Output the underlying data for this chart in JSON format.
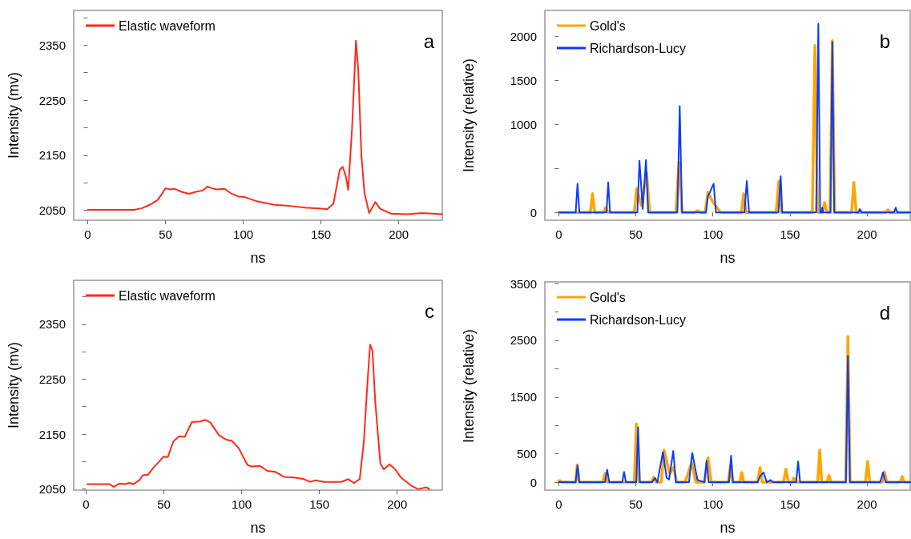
{
  "chart_data": [
    {
      "type": "line",
      "xlabel": "ns",
      "ylabel": "Intensity (mv)",
      "annotations": [
        "a"
      ],
      "legend": "top left",
      "xlim": [
        -9,
        228
      ],
      "xticks": [
        0,
        50,
        100,
        150,
        200
      ],
      "ylim": [
        2032,
        2413
      ],
      "yticks": [
        2050,
        {
          "value": 2100,
          "label": null
        },
        2150,
        {
          "value": 2200,
          "label": null
        },
        2250,
        {
          "value": 2300,
          "label": null
        },
        2350,
        {
          "value": 2400,
          "label": null
        }
      ],
      "series": [
        {
          "name": "Elastic waveform",
          "color": "#ff2a1a",
          "x": [
            0,
            30,
            35,
            40,
            45,
            48,
            50,
            53,
            56,
            60,
            65,
            70,
            74,
            77,
            80,
            83,
            88,
            92,
            97,
            101,
            108,
            120,
            130,
            140,
            150,
            154,
            158,
            162,
            164,
            166,
            167.5,
            170,
            172.5,
            174,
            176,
            178,
            181,
            185,
            188,
            195,
            205,
            215,
            228
          ],
          "values": [
            2051,
            2051,
            2054,
            2060,
            2069,
            2081,
            2090,
            2088,
            2089,
            2084,
            2080,
            2084,
            2086,
            2093,
            2090,
            2088,
            2089,
            2081,
            2075,
            2074,
            2067,
            2060,
            2058,
            2055,
            2053,
            2052,
            2062,
            2123,
            2129,
            2112,
            2087,
            2200,
            2358,
            2303,
            2149,
            2081,
            2045,
            2065,
            2053,
            2044,
            2043,
            2045,
            2043
          ]
        }
      ]
    },
    {
      "type": "line",
      "xlabel": "ns",
      "ylabel": "Intensity (relative)",
      "annotations": [
        "b"
      ],
      "legend": "top left",
      "xlim": [
        -9,
        228
      ],
      "xticks": [
        0,
        50,
        100,
        150,
        200
      ],
      "ylim": [
        -89,
        2293
      ],
      "yticks": [
        0,
        {
          "value": 500,
          "label": null
        },
        1000,
        1500,
        2000
      ],
      "series": [
        {
          "name": "Gold's",
          "color": "#ffa500",
          "x": [
            0,
            20.5,
            21.9,
            23.3,
            29,
            30.5,
            32,
            49,
            50.6,
            53.5,
            57,
            59,
            76,
            78,
            80,
            88,
            90,
            92,
            95,
            96.8,
            100,
            105,
            118.5,
            120,
            121.5,
            141,
            142.8,
            144.5,
            164.5,
            166.2,
            168,
            171,
            172.4,
            174,
            176,
            177.5,
            179,
            190,
            191.4,
            193,
            212,
            213.5,
            215,
            228
          ],
          "values": [
            0,
            0,
            213,
            0,
            0,
            54,
            0,
            0,
            270,
            80,
            452,
            0,
            0,
            570,
            0,
            0,
            20,
            0,
            0,
            229,
            118,
            0,
            0,
            213,
            0,
            0,
            357,
            0,
            0,
            1895,
            0,
            0,
            111,
            0,
            0,
            1949,
            0,
            0,
            340,
            0,
            0,
            29,
            0,
            0
          ]
        },
        {
          "name": "Richardson-Lucy",
          "color": "#0a3cff",
          "x": [
            0,
            11,
            12.2,
            13.4,
            31,
            32.1,
            33.3,
            51,
            52.4,
            54.5,
            56.6,
            58,
            77,
            78.5,
            80,
            95.5,
            96.8,
            100.5,
            102,
            120.5,
            122,
            123.5,
            142.5,
            144,
            145,
            167,
            168.4,
            169.6,
            170.5,
            171,
            171.5,
            176.3,
            177.5,
            178.7,
            194.3,
            195.4,
            196.5,
            217.5,
            218.6,
            219.7,
            228
          ],
          "values": [
            0,
            0,
            325,
            0,
            0,
            340,
            0,
            0,
            586,
            38,
            596,
            0,
            0,
            1207,
            0,
            0,
            180,
            325,
            0,
            0,
            357,
            0,
            0,
            411,
            0,
            0,
            2140,
            0,
            0,
            54,
            0,
            0,
            1933,
            0,
            0,
            38,
            0,
            0,
            54,
            0,
            0
          ]
        }
      ]
    },
    {
      "type": "line",
      "xlabel": "ns",
      "ylabel": "Intensity (mv)",
      "annotations": [
        "c"
      ],
      "legend": "top left",
      "xlim": [
        -8,
        229
      ],
      "xticks": [
        0,
        50,
        100,
        150,
        200
      ],
      "ylim": [
        2048,
        2430
      ],
      "yticks": [
        2050,
        {
          "value": 2100,
          "label": null
        },
        2150,
        {
          "value": 2200,
          "label": null
        },
        2250,
        {
          "value": 2300,
          "label": null
        },
        2350,
        {
          "value": 2400,
          "label": null
        }
      ],
      "series": [
        {
          "name": "Elastic waveform",
          "color": "#ff2a1a",
          "x": [
            0.7,
            12.2,
            15,
            17.7,
            21.4,
            25,
            27.8,
            30.5,
            34.2,
            36.4,
            39.7,
            43.3,
            47,
            49.7,
            52.5,
            56.1,
            59.8,
            63.4,
            68,
            73.5,
            76.6,
            79.9,
            85.4,
            89.9,
            93.6,
            98.2,
            103.7,
            106.4,
            111.9,
            116.5,
            121.9,
            127.4,
            133.8,
            140.2,
            143.9,
            147.5,
            153,
            158.5,
            164,
            168.6,
            172.2,
            175.9,
            178.6,
            180.8,
            182.6,
            184.1,
            185.9,
            189.2,
            191.4,
            195.1,
            198.7,
            202.4,
            204.2,
            209.7,
            213.3,
            218.8,
            220.7
          ],
          "values": [
            2059,
            2059,
            2059,
            2054,
            2060,
            2059,
            2061,
            2059,
            2066,
            2075,
            2076,
            2089,
            2100,
            2109,
            2108,
            2137,
            2146,
            2145,
            2172,
            2173,
            2176,
            2171,
            2148,
            2140,
            2138,
            2124,
            2094,
            2091,
            2092,
            2083,
            2081,
            2072,
            2071,
            2068,
            2063,
            2066,
            2063,
            2063,
            2063,
            2068,
            2061,
            2068,
            2137,
            2240,
            2313,
            2302,
            2209,
            2096,
            2086,
            2095,
            2086,
            2071,
            2067,
            2055,
            2050,
            2053,
            2050
          ]
        }
      ]
    },
    {
      "type": "line",
      "xlabel": "ns",
      "ylabel": "Intensity (relative)",
      "annotations": [
        "d"
      ],
      "legend": "top left",
      "xlim": [
        -9,
        228
      ],
      "xticks": [
        0,
        50,
        100,
        150,
        200
      ],
      "ylim": [
        -140,
        3530
      ],
      "yticks": [
        0,
        500,
        {
          "value": 1000,
          "label": null
        },
        1500,
        {
          "value": 2000,
          "label": null
        },
        2500,
        {
          "value": 3000,
          "label": null
        },
        3500
      ],
      "series": [
        {
          "name": "Gold's",
          "color": "#ffa500",
          "x": [
            0,
            1,
            2,
            11,
            12,
            13.3,
            28.5,
            30.1,
            31.5,
            49,
            50.4,
            52,
            60,
            61.6,
            63,
            66.5,
            68.3,
            72,
            74.5,
            76.5,
            82,
            86.2,
            89,
            94.5,
            96.8,
            99,
            110,
            111.4,
            112.8,
            117.5,
            118.7,
            120,
            129,
            130.6,
            132,
            145.8,
            147.4,
            149,
            151.5,
            152.5,
            153.5,
            168,
            169.3,
            170.6,
            174,
            175.3,
            176.6,
            186.2,
            187.6,
            189,
            199,
            200.4,
            201.8,
            209.8,
            211.3,
            212.8,
            221.5,
            222.8,
            224.1,
            228
          ],
          "values": [
            25,
            25,
            0,
            0,
            305,
            0,
            0,
            157,
            0,
            0,
            1027,
            0,
            0,
            84,
            0,
            0,
            565,
            150,
            260,
            0,
            0,
            344,
            0,
            0,
            432,
            0,
            0,
            295,
            0,
            0,
            172,
            0,
            0,
            260,
            0,
            0,
            231,
            0,
            0,
            74,
            0,
            0,
            565,
            0,
            0,
            123,
            0,
            0,
            2570,
            0,
            0,
            369,
            0,
            0,
            182,
            0,
            0,
            98,
            0,
            0
          ]
        },
        {
          "name": "Richardson-Lucy",
          "color": "#0a3cff",
          "x": [
            0,
            11,
            12.2,
            13.4,
            30,
            31.4,
            32.8,
            41.2,
            42.4,
            43.6,
            50.3,
            51.5,
            52.7,
            60.5,
            62.5,
            64,
            67.6,
            70,
            71.6,
            74.3,
            76,
            84.5,
            86.6,
            90,
            94.5,
            95.9,
            97.3,
            110.5,
            111.8,
            113.1,
            129,
            130.5,
            132.8,
            135,
            137.4,
            139,
            154,
            155.3,
            156.6,
            186.3,
            187.6,
            188.9,
            208.5,
            210.4,
            212,
            228
          ],
          "values": [
            0,
            0,
            295,
            0,
            0,
            221,
            0,
            0,
            182,
            0,
            0,
            968,
            0,
            0,
            74,
            0,
            531,
            80,
            49,
            550,
            0,
            0,
            516,
            40,
            0,
            378,
            0,
            0,
            467,
            0,
            0,
            98,
            172,
            0,
            39,
            0,
            0,
            364,
            0,
            0,
            2226,
            0,
            0,
            172,
            0,
            0
          ]
        }
      ]
    }
  ]
}
